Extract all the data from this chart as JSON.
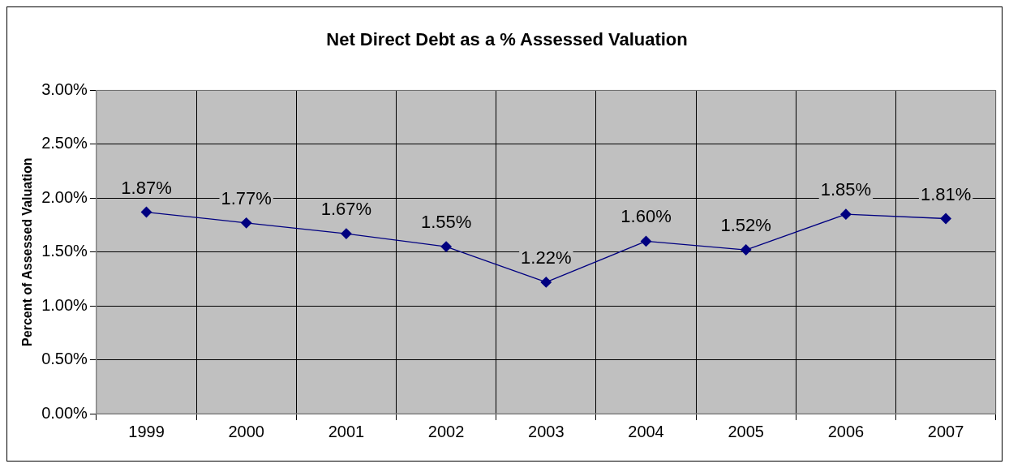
{
  "chart_data": {
    "type": "line",
    "title": "Net Direct Debt as a % Assessed Valuation",
    "ylabel": "Percent of Assessed Valuation",
    "categories": [
      "1999",
      "2000",
      "2001",
      "2002",
      "2003",
      "2004",
      "2005",
      "2006",
      "2007"
    ],
    "series": [
      {
        "color": "#000080",
        "values": [
          1.87,
          1.77,
          1.67,
          1.55,
          1.22,
          1.6,
          1.52,
          1.85,
          1.81
        ],
        "value_labels": [
          "1.87%",
          "1.77%",
          "1.67%",
          "1.55%",
          "1.22%",
          "1.60%",
          "1.52%",
          "1.85%",
          "1.81%"
        ]
      }
    ],
    "ylim": [
      0,
      3
    ],
    "yticks": [
      {
        "value": 0,
        "label": "0.00%"
      },
      {
        "value": 0.5,
        "label": "0.50%"
      },
      {
        "value": 1,
        "label": "1.00%"
      },
      {
        "value": 1.5,
        "label": "1.50%"
      },
      {
        "value": 2,
        "label": "2.00%"
      },
      {
        "value": 2.5,
        "label": "2.50%"
      },
      {
        "value": 3,
        "label": "3.00%"
      }
    ],
    "grid": true,
    "legend": false,
    "marker": "diamond",
    "line_style": "solid"
  }
}
